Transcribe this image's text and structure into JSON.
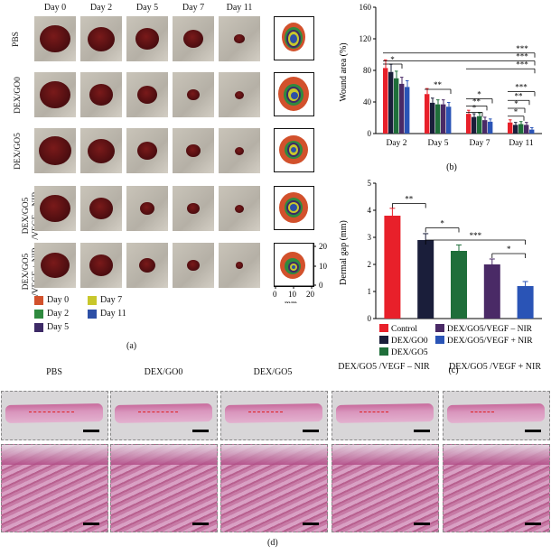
{
  "panel_a": {
    "day_headers": [
      "Day 0",
      "Day 2",
      "Day 5",
      "Day 7",
      "Day 11"
    ],
    "row_labels": [
      "PBS",
      "DEX/GO0",
      "DEX/GO5",
      "DEX/GO5 /VEGF – NIR",
      "DEX/GO5 /VEGF + NIR"
    ],
    "legend": [
      "Day 0",
      "Day 7",
      "Day 2",
      "Day 11",
      "Day 5"
    ],
    "legend_colors": {
      "day0": "#d2512c",
      "day2": "#2f8a3f",
      "day5": "#3d2a66",
      "day7": "#c8c72c",
      "day11": "#2d4fa6"
    },
    "trace_axis": {
      "y_ticks": [
        "20",
        "10",
        "0"
      ],
      "x_ticks": [
        "0",
        "10",
        "20"
      ],
      "unit": "mm"
    },
    "caption": "(a)"
  },
  "panel_b": {
    "caption": "(b)",
    "chart_data": {
      "type": "bar",
      "ylabel": "Wound area (%)",
      "ylim": [
        0,
        160
      ],
      "yticks": [
        0,
        40,
        80,
        120,
        160
      ],
      "categories": [
        "Day 2",
        "Day 5",
        "Day 7",
        "Day 11"
      ],
      "series": [
        {
          "color": "#e8202a",
          "values": [
            83,
            50,
            25,
            14
          ]
        },
        {
          "color": "#1a1e3a",
          "values": [
            78,
            39,
            21,
            11
          ]
        },
        {
          "color": "#1f6e3a",
          "values": [
            70,
            37,
            22,
            12
          ]
        },
        {
          "color": "#4a2a66",
          "values": [
            63,
            37,
            17,
            11
          ]
        },
        {
          "color": "#2a54b6",
          "values": [
            59,
            34,
            15,
            5
          ]
        }
      ],
      "significance": [
        "*",
        "**",
        "***",
        "***",
        "***",
        "*",
        "**",
        "*",
        "***",
        "**",
        "*",
        "*"
      ]
    }
  },
  "panel_c": {
    "caption": "(c)",
    "chart_data": {
      "type": "bar",
      "ylabel": "Dermal gap (mm)",
      "ylim": [
        0,
        5
      ],
      "yticks": [
        0,
        1,
        2,
        3,
        4,
        5
      ],
      "categories": [
        "Control",
        "DEX/GO0",
        "DEX/GO5",
        "DEX/GO5/VEGF – NIR",
        "DEX/GO5/VEGF + NIR"
      ],
      "values": [
        3.8,
        2.9,
        2.5,
        2.0,
        1.2
      ],
      "colors": [
        "#e8202a",
        "#1a1e3a",
        "#1f6e3a",
        "#4a2a66",
        "#2a54b6"
      ],
      "significance": [
        "**",
        "*",
        "***",
        "*"
      ]
    },
    "legend": [
      "Control",
      "DEX/GO0",
      "DEX/GO5",
      "DEX/GO5/VEGF – NIR",
      "DEX/GO5/VEGF + NIR"
    ]
  },
  "panel_d": {
    "caption": "(d)",
    "labels": [
      "PBS",
      "DEX/GO0",
      "DEX/GO5",
      "DEX/GO5 /VEGF – NIR",
      "DEX/GO5 /VEGF + NIR"
    ]
  }
}
